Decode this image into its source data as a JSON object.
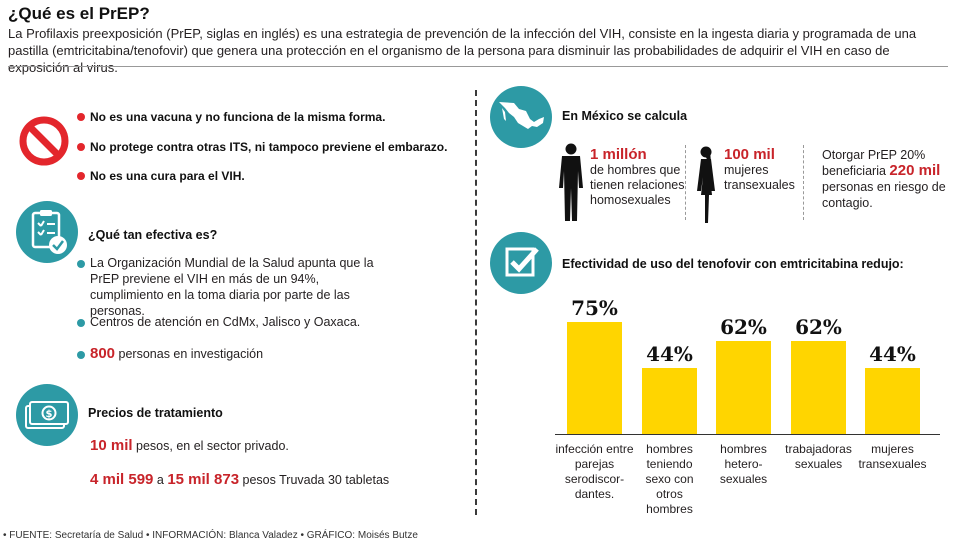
{
  "title": "¿Qué es el PrEP?",
  "intro": "La Profilaxis preexposición (PrEP, siglas en inglés) es una estrategia de prevención de la infección del VIH, consiste en la ingesta diaria y programada de una pastilla (emtricitabina/tenofovir) que genera una protección en el organismo de la persona para disminuir las probabilidades de adquirir el VIH en caso de exposición al virus.",
  "warnings": [
    "No es una vacuna y no funciona de la misma forma.",
    "No protege contra otras ITS, ni tampoco previene el embarazo.",
    "No es una cura para el VIH."
  ],
  "efectividad": {
    "heading": "¿Qué tan efectiva es?",
    "items": [
      "La Organización Mundial de la Salud apunta que la PrEP previene el VIH en más de un 94%, cumplimiento en la toma diaria por parte de las personas.",
      "Centros de atención en CdMx, Jalisco y Oaxaca."
    ],
    "investigacion_num": "800",
    "investigacion_text": "personas en investigación"
  },
  "precios": {
    "heading": "Precios de tratamiento",
    "line1_num": "10 mil",
    "line1_text": "pesos, en el sector privado.",
    "line2_num1": "4 mil 599",
    "line2_mid": "a",
    "line2_num2": "15 mil 873",
    "line2_text": "pesos Truvada 30 tabletas"
  },
  "mexico": {
    "heading": "En México se calcula",
    "men_num": "1 millón",
    "men_text": "de hombres que tienen relaciones homosexuales",
    "women_num": "100 mil",
    "women_text": "mujeres transexuales",
    "benef_pre": "Otorgar PrEP 20% beneficiaria",
    "benef_num": "220 mil",
    "benef_post": "personas en riesgo de contagio."
  },
  "chart_data": {
    "type": "bar",
    "title": "Efectividad de uso del tenofovir con emtricitabina redujo:",
    "categories": [
      "infección entre parejas serodiscor-dantes.",
      "hombres teniendo sexo con otros hombres",
      "hombres hetero-sexuales",
      "trabajadoras sexuales",
      "mujeres transexuales"
    ],
    "values": [
      75,
      44,
      62,
      62,
      44
    ],
    "value_labels": [
      "75%",
      "44%",
      "62%",
      "62%",
      "44%"
    ],
    "ylim": [
      0,
      100
    ],
    "color": "#ffd500"
  },
  "footer": "• FUENTE: Secretaría de Salud • INFORMACIÓN: Blanca Valadez • GRÁFICO: Moisés Butze",
  "colors": {
    "teal": "#2d9aa5",
    "red": "#c8242a",
    "yellow": "#ffd500"
  }
}
